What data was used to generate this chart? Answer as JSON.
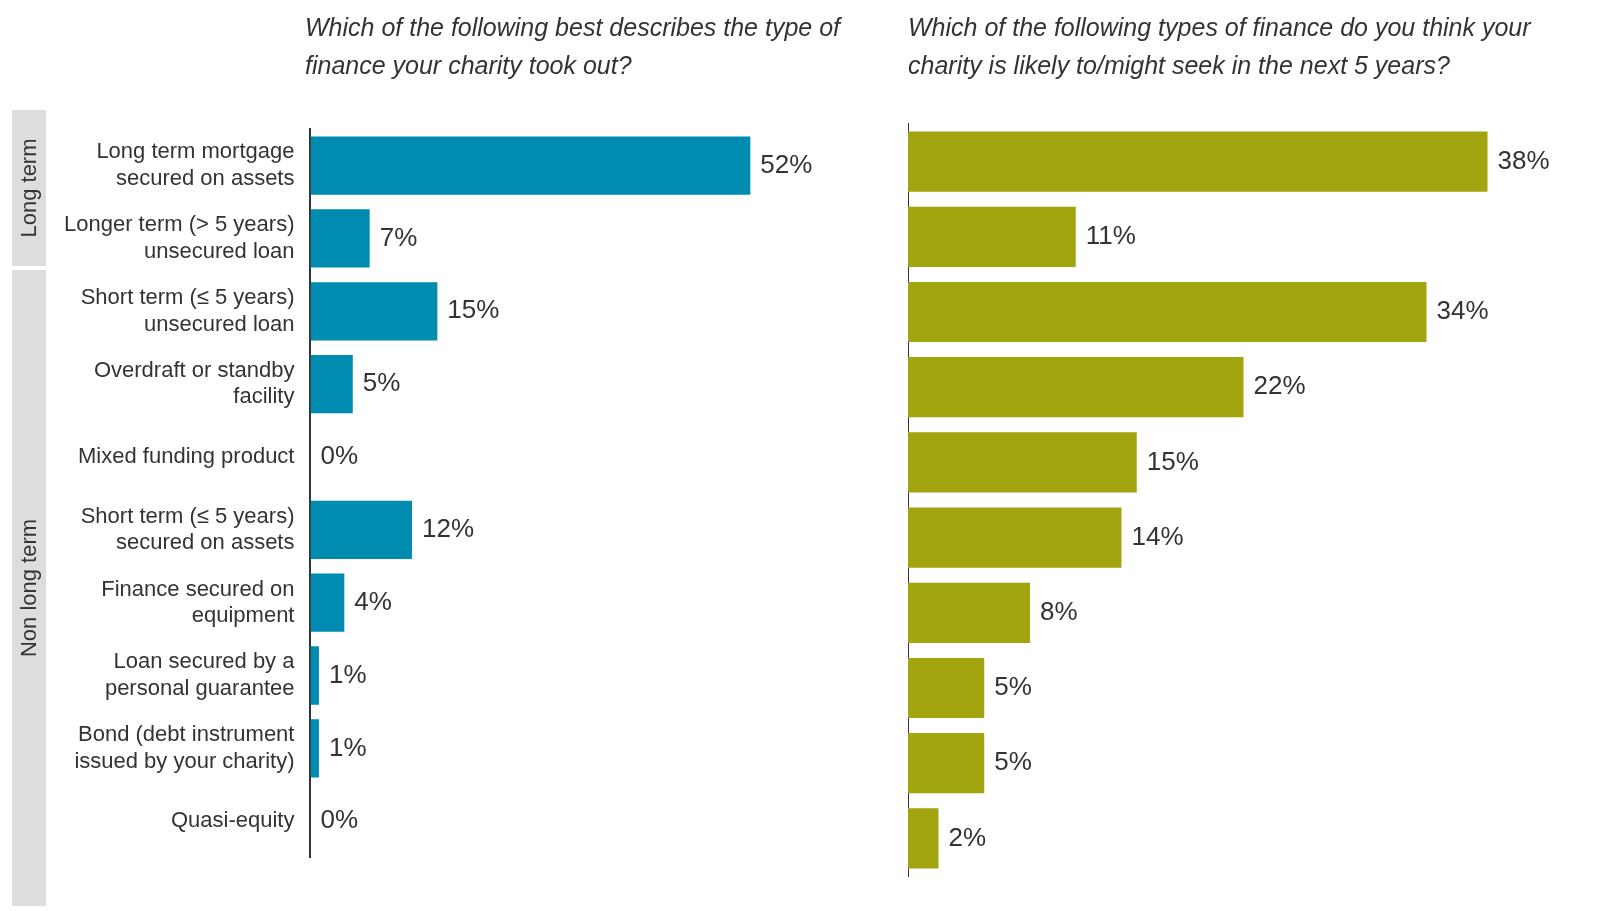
{
  "chart_data": [
    {
      "type": "bar",
      "orientation": "horizontal",
      "title": "Which of the following best describes the type of finance your charity took out?",
      "categories": [
        "Long term mortgage secured on assets",
        "Longer term (> 5 years) unsecured loan",
        "Short term (≤ 5 years) unsecured loan",
        "Overdraft or standby facility",
        "Mixed funding product",
        "Short term (≤ 5 years) secured on assets",
        "Finance secured on equipment",
        "Loan secured by a personal guarantee",
        "Bond (debt instrument issued by your charity)",
        "Quasi-equity"
      ],
      "values": [
        52,
        7,
        15,
        5,
        0,
        12,
        4,
        1,
        1,
        0
      ],
      "value_labels": [
        "52%",
        "7%",
        "15%",
        "5%",
        "0%",
        "12%",
        "4%",
        "1%",
        "1%",
        "0%"
      ],
      "color": "#008bb0",
      "grid": false,
      "legend": false,
      "tick_labels": "y",
      "annotations": [
        "Long term",
        "Non long term"
      ]
    },
    {
      "type": "bar",
      "orientation": "horizontal",
      "title": "Which of the following types of finance do you think your charity is likely to/might seek in the next 5 years?",
      "categories": [
        null,
        null,
        null,
        null,
        null,
        null,
        null,
        null,
        null,
        null
      ],
      "values": [
        38,
        11,
        34,
        22,
        15,
        14,
        8,
        5,
        5,
        2
      ],
      "value_labels": [
        "38%",
        "11%",
        "34%",
        "22%",
        "15%",
        "14%",
        "8%",
        "5%",
        "5%",
        "2%"
      ],
      "color": "#a3a510",
      "grid": false,
      "legend": false,
      "tick_labels": false
    }
  ]
}
